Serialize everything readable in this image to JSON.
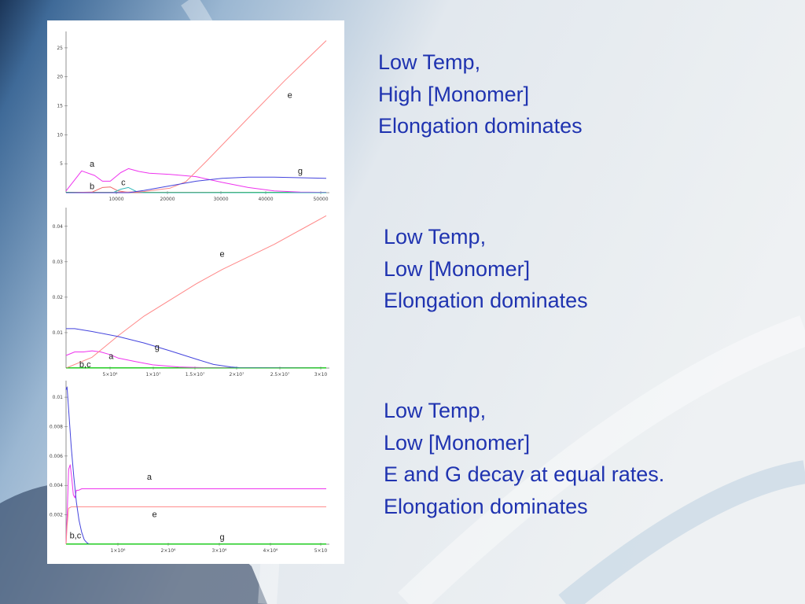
{
  "panels": [
    {
      "lines": [
        "Low Temp,",
        "High [Monomer]",
        "Elongation dominates"
      ]
    },
    {
      "lines": [
        "Low Temp,",
        "Low [Monomer]",
        "Elongation dominates"
      ]
    },
    {
      "lines": [
        "Low Temp,",
        "Low [Monomer]",
        "E and G decay at equal rates.",
        "Elongation dominates"
      ]
    }
  ],
  "colors": {
    "text": "#1f33b0",
    "a": "#ee33ee",
    "b": "#ee6666",
    "c": "#33bbbb",
    "e": "#ff8888",
    "g": "#4444dd",
    "baseline": "#22cc22"
  },
  "chart_data": [
    {
      "type": "line",
      "xlim": [
        0,
        50000
      ],
      "ylim": [
        0,
        27
      ],
      "x_ticks": [
        "10000",
        "20000",
        "30000",
        "40000",
        "50000"
      ],
      "y_ticks": [
        "5",
        "10",
        "15",
        "20",
        "25"
      ],
      "series": [
        {
          "name": "a",
          "x": [
            0,
            3000,
            5500,
            7000,
            8500,
            10500,
            12000,
            14000,
            16000,
            20000,
            25000,
            30000,
            35000,
            40000,
            45000,
            50000
          ],
          "y": [
            0.3,
            3.8,
            3.0,
            2.0,
            2.0,
            3.5,
            4.2,
            3.7,
            3.4,
            3.2,
            2.8,
            1.8,
            0.9,
            0.3,
            0.1,
            0.05
          ]
        },
        {
          "name": "b",
          "x": [
            0,
            5000,
            7000,
            8500,
            10000,
            12000,
            50000
          ],
          "y": [
            0,
            0.1,
            0.9,
            1.0,
            0.3,
            0.05,
            0
          ]
        },
        {
          "name": "c",
          "x": [
            0,
            9000,
            10500,
            12000,
            13500,
            15000,
            50000
          ],
          "y": [
            0,
            0,
            0.6,
            0.9,
            0.2,
            0,
            0
          ]
        },
        {
          "name": "e",
          "x": [
            0,
            10000,
            15000,
            20000,
            23000,
            27000,
            35000,
            42000,
            50000
          ],
          "y": [
            0,
            0.05,
            0.2,
            0.8,
            1.9,
            5.5,
            13,
            19.5,
            26.5
          ]
        },
        {
          "name": "g",
          "x": [
            0,
            12000,
            15000,
            20000,
            25000,
            30000,
            35000,
            40000,
            45000,
            50000
          ],
          "y": [
            0,
            0,
            0.4,
            1.2,
            2.0,
            2.5,
            2.7,
            2.7,
            2.6,
            2.5
          ]
        }
      ],
      "labels": [
        {
          "text": "a",
          "x": 5000,
          "y": 4.5
        },
        {
          "text": "b",
          "x": 5000,
          "y": 0.6
        },
        {
          "text": "c",
          "x": 11000,
          "y": 1.3
        },
        {
          "text": "e",
          "x": 43000,
          "y": 16.5
        },
        {
          "text": "g",
          "x": 45000,
          "y": 3.3
        }
      ]
    },
    {
      "type": "line",
      "xlim": [
        0,
        30000000
      ],
      "ylim": [
        0,
        0.043
      ],
      "x_ticks": [
        "5×10⁶",
        "1×10⁷",
        "1.5×10⁷",
        "2×10⁷",
        "2.5×10⁷",
        "3×10"
      ],
      "y_ticks": [
        "0.01",
        "0.02",
        "0.03",
        "0.04"
      ],
      "series": [
        {
          "name": "a",
          "x": [
            0,
            1000000,
            2000000,
            3000000,
            4000000,
            5000000,
            6000000,
            8000000,
            10000000,
            13000000,
            16000000,
            30000000
          ],
          "y": [
            0.0035,
            0.0045,
            0.0045,
            0.0048,
            0.0045,
            0.0038,
            0.0028,
            0.0018,
            0.0009,
            0.0003,
            0.0001,
            0
          ]
        },
        {
          "name": "e",
          "x": [
            0,
            3000000,
            6000000,
            9000000,
            12000000,
            15000000,
            18000000,
            21000000,
            24000000,
            27000000,
            30000000
          ],
          "y": [
            0,
            0.003,
            0.009,
            0.0145,
            0.019,
            0.0235,
            0.0275,
            0.031,
            0.0345,
            0.0385,
            0.0425
          ]
        },
        {
          "name": "g",
          "x": [
            0,
            1000000,
            3000000,
            6000000,
            9000000,
            12000000,
            15000000,
            17000000,
            19000000,
            20000000,
            30000000
          ],
          "y": [
            0.011,
            0.011,
            0.0102,
            0.0088,
            0.007,
            0.0048,
            0.0025,
            0.001,
            0.0003,
            0.0001,
            0
          ]
        },
        {
          "name": "b,c",
          "x": [
            0,
            30000000
          ],
          "y": [
            0,
            0
          ]
        }
      ],
      "labels": [
        {
          "text": "e",
          "x": 18000000,
          "y": 0.031
        },
        {
          "text": "g",
          "x": 10500000,
          "y": 0.005
        },
        {
          "text": "a",
          "x": 5200000,
          "y": 0.0025
        },
        {
          "text": "b,c",
          "x": 2200000,
          "y": 0.0002
        }
      ]
    },
    {
      "type": "line",
      "xlim": [
        0,
        5000000
      ],
      "ylim": [
        0,
        0.0105
      ],
      "x_ticks": [
        "1×10⁶",
        "2×10⁶",
        "3×10⁶",
        "4×10⁶",
        "5×10"
      ],
      "y_ticks": [
        "0.002",
        "0.004",
        "0.006",
        "0.008",
        "0.01"
      ],
      "series": [
        {
          "name": "a",
          "x": [
            0,
            20000,
            50000,
            80000,
            110000,
            140000,
            170000,
            200000,
            240000,
            300000,
            400000,
            600000,
            5000000
          ],
          "y": [
            0,
            0.0018,
            0.005,
            0.0053,
            0.0044,
            0.0033,
            0.0031,
            0.0036,
            0.0036,
            0.0037,
            0.0037,
            0.0037,
            0.0037
          ]
        },
        {
          "name": "e",
          "x": [
            0,
            20000,
            50000,
            100000,
            200000,
            5000000
          ],
          "y": [
            0,
            0.0012,
            0.0024,
            0.0025,
            0.0025,
            0.0025
          ]
        },
        {
          "name": "g",
          "x": [
            0,
            20000,
            50000,
            100000,
            150000,
            200000,
            250000,
            300000,
            350000,
            400000,
            450000,
            600000,
            5000000
          ],
          "y": [
            0.0103,
            0.0105,
            0.009,
            0.0065,
            0.0045,
            0.0028,
            0.0016,
            0.0008,
            0.0003,
            0.0001,
            0,
            0,
            0
          ]
        },
        {
          "name": "b,c",
          "x": [
            0,
            5000000
          ],
          "y": [
            0,
            0
          ]
        }
      ],
      "labels": [
        {
          "text": "a",
          "x": 1600000,
          "y": 0.0043
        },
        {
          "text": "e",
          "x": 1700000,
          "y": 0.0018
        },
        {
          "text": "b,c",
          "x": 180000,
          "y": 0.0004
        },
        {
          "text": "g",
          "x": 3000000,
          "y": 0.0003
        }
      ]
    }
  ]
}
